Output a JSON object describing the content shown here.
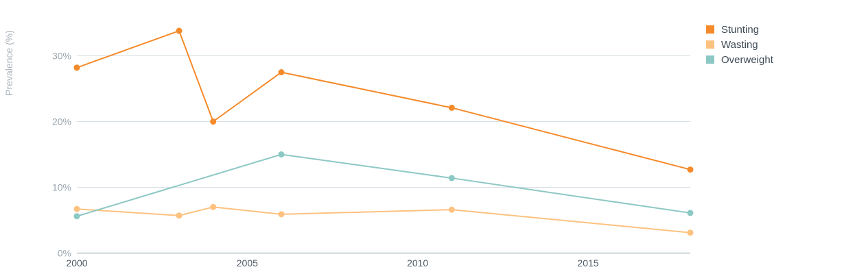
{
  "chart_data": {
    "type": "line",
    "ylabel": "Prevalence (%)",
    "xlim": [
      2000,
      2018
    ],
    "ylim": [
      0,
      34
    ],
    "y_ticks": [
      0,
      10,
      20,
      30
    ],
    "y_tick_labels": [
      "0%",
      "10%",
      "20%",
      "30%"
    ],
    "x_ticks": [
      2000,
      2005,
      2010,
      2015
    ],
    "x_tick_labels": [
      "2000",
      "2005",
      "2010",
      "2015"
    ],
    "grid": true,
    "legend_position": "top-right",
    "series": [
      {
        "name": "Stunting",
        "color": "#f58a2a",
        "points": [
          [
            2000,
            28.2
          ],
          [
            2003,
            33.8
          ],
          [
            2004,
            20.0
          ],
          [
            2006,
            27.5
          ],
          [
            2011,
            22.1
          ],
          [
            2018,
            12.7
          ]
        ]
      },
      {
        "name": "Wasting",
        "color": "#fdc27f",
        "points": [
          [
            2000,
            6.7
          ],
          [
            2003,
            5.7
          ],
          [
            2004,
            7.0
          ],
          [
            2006,
            5.9
          ],
          [
            2011,
            6.6
          ],
          [
            2018,
            3.1
          ]
        ]
      },
      {
        "name": "Overweight",
        "color": "#8cc8c4",
        "points": [
          [
            2000,
            5.6
          ],
          [
            2006,
            15.0
          ],
          [
            2011,
            11.4
          ],
          [
            2018,
            6.1
          ]
        ]
      }
    ]
  }
}
